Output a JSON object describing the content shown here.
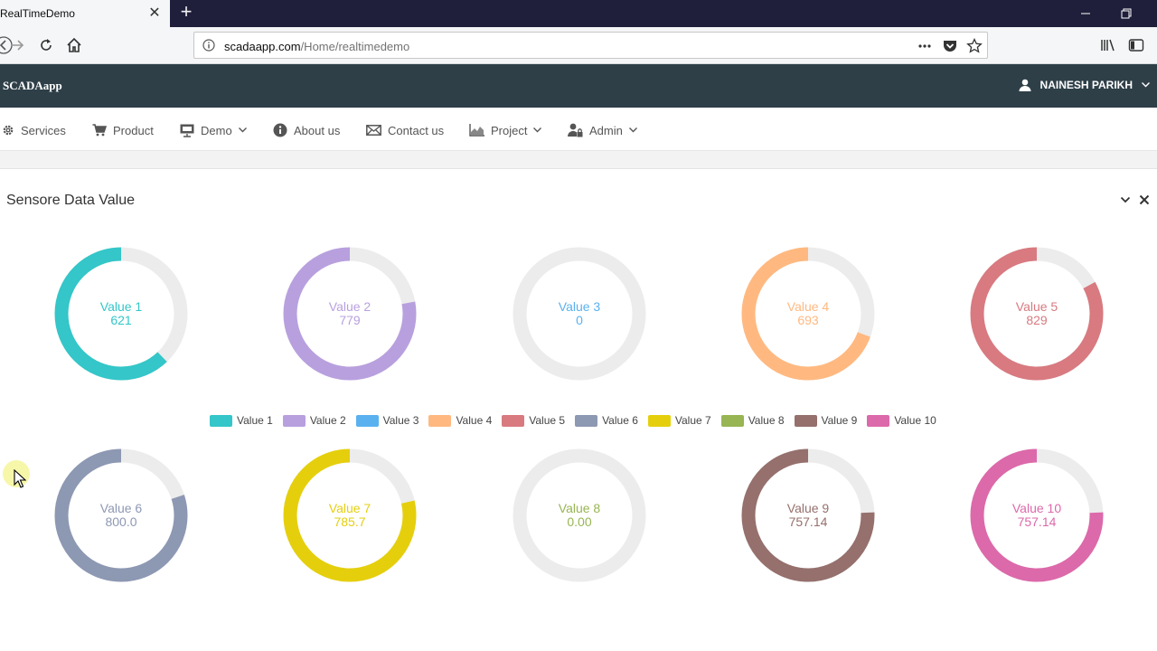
{
  "browser": {
    "tab_title": "RealTimeDemo",
    "url_host": "scadaapp.com",
    "url_path": "/Home/realtimedemo"
  },
  "site": {
    "brand": "SCADAapp",
    "user_name": "NAINESH PARIKH"
  },
  "menu": [
    {
      "label": "Services",
      "icon": "gear-icon"
    },
    {
      "label": "Product",
      "icon": "cart-icon"
    },
    {
      "label": "Demo",
      "icon": "presentation-icon",
      "dropdown": true
    },
    {
      "label": "About us",
      "icon": "info-icon"
    },
    {
      "label": "Contact us",
      "icon": "envelope-icon"
    },
    {
      "label": "Project",
      "icon": "area-chart-icon",
      "dropdown": true
    },
    {
      "label": "Admin",
      "icon": "user-lock-icon",
      "dropdown": true
    }
  ],
  "panel": {
    "title": "Sensore Data Value"
  },
  "chart_data": {
    "type": "pie",
    "variant": "donut",
    "track_color": "#ececec",
    "series": [
      {
        "name": "Value 1",
        "display": "621",
        "value": 621,
        "fill_fraction": 0.621,
        "color": "#34c6c8"
      },
      {
        "name": "Value 2",
        "display": "779",
        "value": 779,
        "fill_fraction": 0.779,
        "color": "#b8a0de"
      },
      {
        "name": "Value 3",
        "display": "0",
        "value": 0,
        "fill_fraction": 0,
        "color": "#5ab1ef"
      },
      {
        "name": "Value 4",
        "display": "693",
        "value": 693,
        "fill_fraction": 0.693,
        "color": "#ffb980"
      },
      {
        "name": "Value 5",
        "display": "829",
        "value": 829,
        "fill_fraction": 0.829,
        "color": "#d87a80"
      },
      {
        "name": "Value 6",
        "display": "800.0",
        "value": 800,
        "fill_fraction": 0.8,
        "color": "#8d98b3"
      },
      {
        "name": "Value 7",
        "display": "785.7",
        "value": 785.7,
        "fill_fraction": 0.7857,
        "color": "#e5cf0d"
      },
      {
        "name": "Value 8",
        "display": "0.00",
        "value": 0,
        "fill_fraction": 0,
        "color": "#97b552"
      },
      {
        "name": "Value 9",
        "display": "757.14",
        "value": 757.14,
        "fill_fraction": 0.7571,
        "color": "#95706d"
      },
      {
        "name": "Value 10",
        "display": "757.14",
        "value": 757.14,
        "fill_fraction": 0.7571,
        "color": "#dc69aa"
      }
    ],
    "legend": [
      "Value 1",
      "Value 2",
      "Value 3",
      "Value 4",
      "Value 5",
      "Value 6",
      "Value 7",
      "Value 8",
      "Value 9",
      "Value 10"
    ],
    "legend_position": "middle"
  }
}
